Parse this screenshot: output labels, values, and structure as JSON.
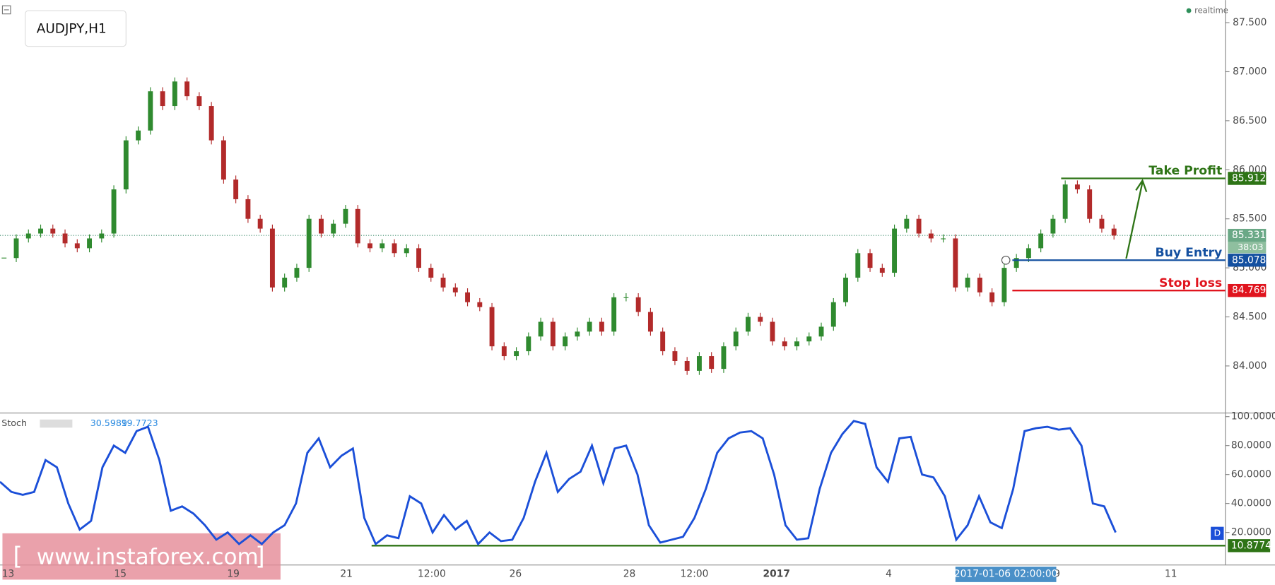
{
  "symbol": "AUDJPY,H1",
  "status": "realtime",
  "watermark": "www.instaforex.com",
  "time_axis": {
    "labels": [
      "13",
      "15",
      "19",
      "21",
      "12:00",
      "26",
      "28",
      "12:00",
      "2017",
      "4",
      "9",
      "11"
    ],
    "crosshair_label": "2017-01-06 02:00:00"
  },
  "chart_data": [
    {
      "type": "candle",
      "color_up": "#2f8a2f",
      "color_down": "#b22a2a",
      "values": [
        85.1,
        85.3,
        85.35,
        85.4,
        85.35,
        85.25,
        85.2,
        85.3,
        85.35,
        85.8,
        86.3,
        86.4,
        86.8,
        86.65,
        86.9,
        86.75,
        86.65,
        86.3,
        85.9,
        85.7,
        85.5,
        85.4,
        84.8,
        84.9,
        85.0,
        85.5,
        85.35,
        85.45,
        85.6,
        85.25,
        85.2,
        85.25,
        85.15,
        85.2,
        85.0,
        84.9,
        84.8,
        84.75,
        84.65,
        84.6,
        84.2,
        84.1,
        84.15,
        84.3,
        84.45,
        84.2,
        84.3,
        84.35,
        84.45,
        84.35,
        84.7,
        84.7,
        84.55,
        84.35,
        84.15,
        84.05,
        83.95,
        84.1,
        83.97,
        84.2,
        84.35,
        84.5,
        84.45,
        84.25,
        84.2,
        84.25,
        84.3,
        84.4,
        84.65,
        84.9,
        85.15,
        85.0,
        84.95,
        85.4,
        85.5,
        85.35,
        85.3,
        85.3,
        84.8,
        84.9,
        84.75,
        84.65,
        85.0,
        85.1,
        85.2,
        85.35,
        85.5,
        85.85,
        85.8,
        85.5,
        85.4,
        85.33
      ],
      "ylim": [
        83.52,
        87.73
      ],
      "yticks": [
        {
          "value": 84,
          "label": "84.000"
        },
        {
          "value": 84.5,
          "label": "84.500"
        },
        {
          "value": 85,
          "label": "85.000"
        },
        {
          "value": 85.5,
          "label": "85.500"
        },
        {
          "value": 86,
          "label": "86.000"
        },
        {
          "value": 86.5,
          "label": "86.500"
        },
        {
          "value": 87,
          "label": "87.000"
        },
        {
          "value": 87.5,
          "label": "87.500"
        }
      ],
      "last_price": {
        "value": 85.331,
        "label": "85.331"
      },
      "countdown": "38:03",
      "levels": [
        {
          "name": "Take Profit",
          "value": 85.912,
          "label": "85.912",
          "color": "#2e7416"
        },
        {
          "name": "Buy Entry",
          "value": 85.078,
          "label": "85.078",
          "color": "#1450a0"
        },
        {
          "name": "Stop loss",
          "value": 84.769,
          "label": "84.769",
          "color": "#e0141e"
        }
      ]
    },
    {
      "type": "line",
      "name": "Stoch",
      "readings": [
        30.5989,
        19.7723
      ],
      "color": "#1b4fd8",
      "badge": "D",
      "values": [
        55,
        48,
        46,
        48,
        70,
        65,
        40,
        22,
        28,
        65,
        80,
        75,
        90,
        93,
        70,
        35,
        38,
        33,
        25,
        15,
        20,
        12,
        18,
        12,
        20,
        25,
        40,
        75,
        85,
        65,
        73,
        78,
        30,
        12,
        18,
        16,
        45,
        40,
        20,
        32,
        22,
        28,
        12,
        20,
        14,
        15,
        30,
        55,
        75,
        48,
        57,
        62,
        80,
        54,
        78,
        80,
        60,
        25,
        13,
        15,
        17,
        30,
        50,
        75,
        85,
        89,
        90,
        85,
        60,
        25,
        15,
        16,
        50,
        75,
        88,
        97,
        95,
        65,
        55,
        85,
        86,
        60,
        58,
        45,
        15,
        25,
        45,
        27,
        23,
        50,
        90,
        92,
        93,
        91,
        92,
        80,
        40,
        38,
        20
      ],
      "ylim": [
        -2.5,
        102.5
      ],
      "yticks": [
        {
          "value": 20,
          "label": "20.0000"
        },
        {
          "value": 40,
          "label": "40.0000"
        },
        {
          "value": 60,
          "label": "60.0000"
        },
        {
          "value": 80,
          "label": "80.0000"
        },
        {
          "value": 100,
          "label": "100.0000"
        }
      ],
      "level": {
        "value": 10.8774,
        "label": "10.8774",
        "color": "#2e7416"
      }
    }
  ]
}
